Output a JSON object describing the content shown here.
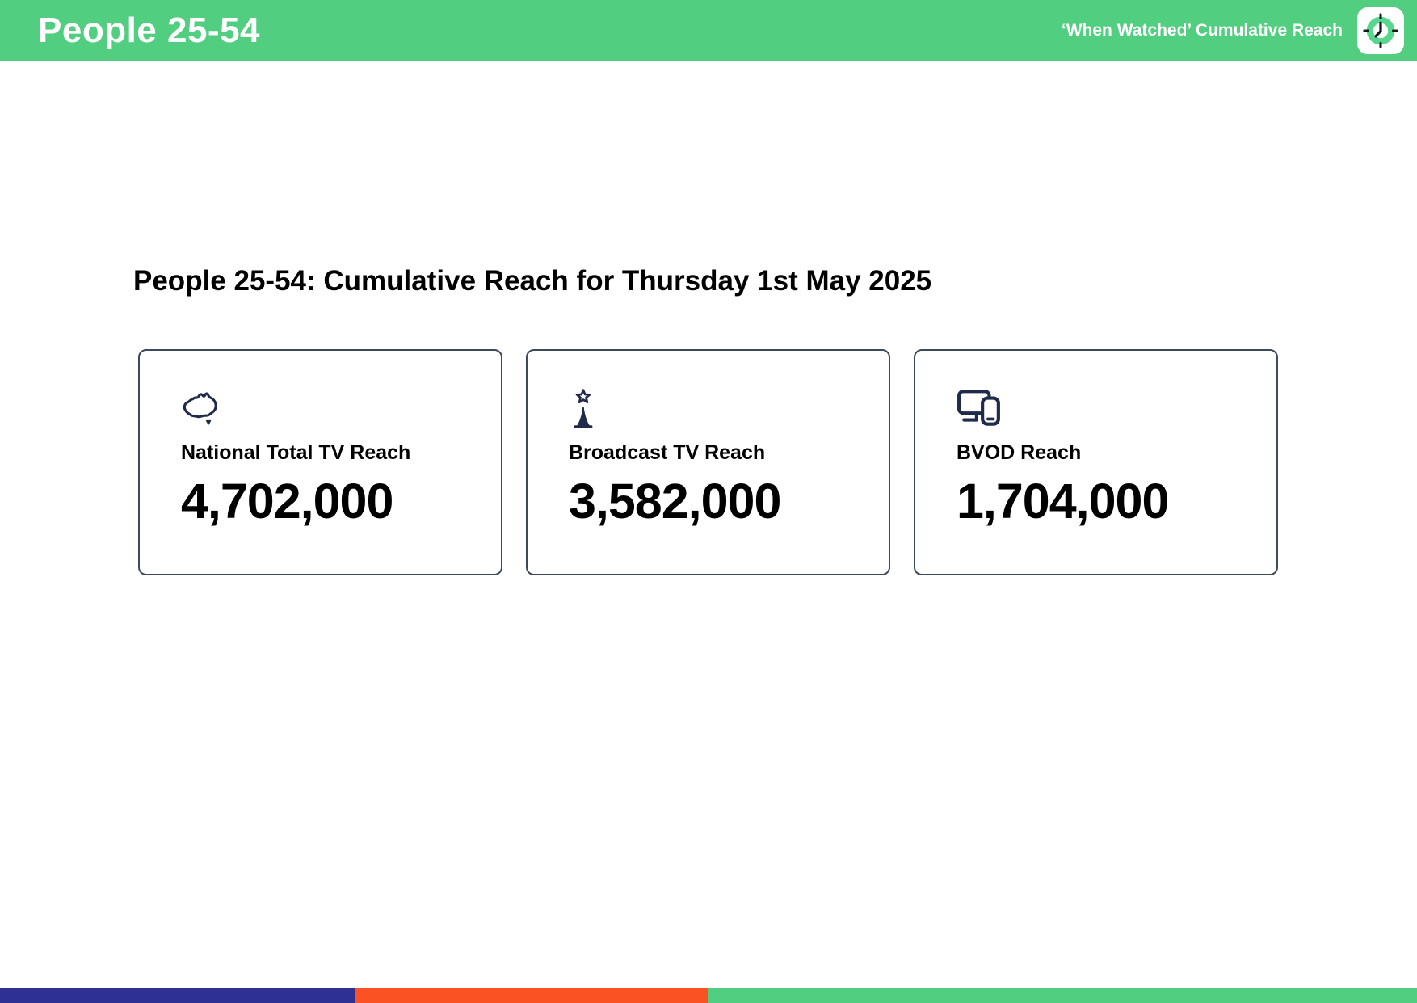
{
  "header": {
    "title": "People 25-54",
    "right_label": "‘When Watched’ Cumulative Reach",
    "bg_color": "#52ce80",
    "app_icon": "clock-app-icon"
  },
  "main": {
    "heading": "People 25-54: Cumulative Reach for Thursday 1st May 2025",
    "cards": [
      {
        "icon": "australia-map-icon",
        "label": "National Total TV Reach",
        "value": "4,702,000"
      },
      {
        "icon": "broadcast-tower-icon",
        "label": "Broadcast TV Reach",
        "value": "3,582,000"
      },
      {
        "icon": "devices-icon",
        "label": "BVOD Reach",
        "value": "1,704,000"
      }
    ],
    "icon_color": "#202b4b"
  },
  "footer": {
    "segments": [
      {
        "name": "segment-indigo",
        "color": "#2e3192",
        "width_pct": 25
      },
      {
        "name": "segment-orange",
        "color": "#fb5224",
        "width_pct": 25
      },
      {
        "name": "segment-green",
        "color": "#52ce80",
        "width_pct": 50
      }
    ]
  }
}
